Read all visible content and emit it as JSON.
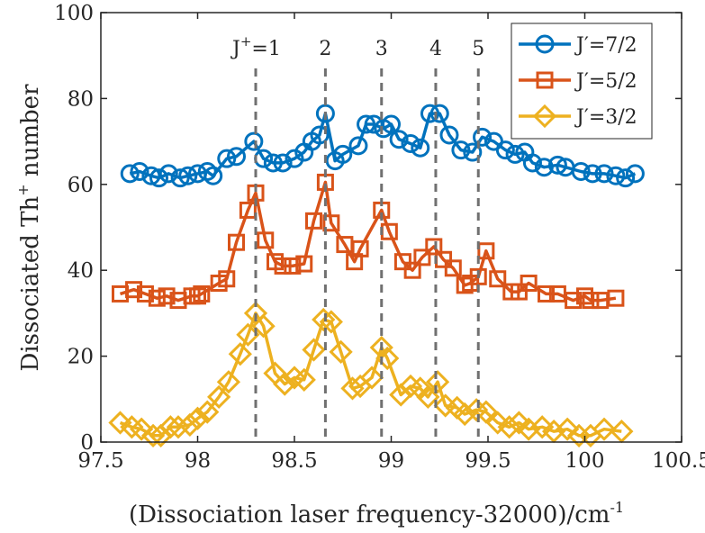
{
  "chart_data": {
    "type": "line",
    "xlabel": "(Dissociation laser frequency-32000)/cm",
    "xlabel_sup": "-1",
    "ylabel": "Dissociated Th",
    "ylabel_sup": "+",
    "ylabel_suffix": " number",
    "xlim": [
      97.5,
      100.5
    ],
    "ylim": [
      0,
      100
    ],
    "xticks": [
      97.5,
      98,
      98.5,
      99,
      99.5,
      100,
      100.5
    ],
    "xtick_labels": [
      "97.5",
      "98",
      "98.5",
      "99",
      "99.5",
      "100",
      "100.5"
    ],
    "yticks": [
      0,
      20,
      40,
      60,
      80,
      100
    ],
    "ytick_labels": [
      "0",
      "20",
      "40",
      "60",
      "80",
      "100"
    ],
    "grid": false,
    "legend_position": "top-right",
    "annotations": {
      "prefix": "J",
      "prefix_sup": "+",
      "lines_x": [
        98.3,
        98.66,
        98.95,
        99.23,
        99.45
      ],
      "labels": [
        "=1",
        "2",
        "3",
        "4",
        "5"
      ]
    },
    "series": [
      {
        "name": "J′=7/2",
        "color": "#0072BD",
        "marker": "circle",
        "x": [
          97.65,
          97.7,
          97.76,
          97.8,
          97.85,
          97.91,
          97.95,
          98.0,
          98.05,
          98.08,
          98.15,
          98.2,
          98.29,
          98.34,
          98.39,
          98.44,
          98.5,
          98.55,
          98.59,
          98.63,
          98.66,
          98.71,
          98.75,
          98.83,
          98.87,
          98.91,
          98.96,
          99.0,
          99.04,
          99.1,
          99.15,
          99.2,
          99.25,
          99.3,
          99.36,
          99.42,
          99.47,
          99.53,
          99.59,
          99.64,
          99.69,
          99.73,
          99.79,
          99.86,
          99.9,
          99.98,
          100.04,
          100.1,
          100.16,
          100.21,
          100.26
        ],
        "y": [
          62.5,
          63.0,
          62.0,
          61.5,
          62.5,
          61.5,
          62.0,
          62.5,
          63.0,
          62.0,
          66.0,
          66.5,
          70.0,
          66.0,
          65.0,
          65.0,
          66.0,
          67.5,
          70.0,
          71.5,
          76.5,
          65.5,
          67.0,
          69.0,
          74.0,
          74.0,
          73.0,
          74.0,
          70.5,
          69.5,
          68.5,
          76.5,
          76.5,
          71.5,
          68.0,
          67.5,
          71.0,
          70.0,
          68.0,
          67.0,
          67.5,
          65.0,
          64.0,
          64.5,
          64.0,
          63.0,
          62.5,
          62.5,
          62.0,
          61.5,
          62.5
        ]
      },
      {
        "name": "J′=5/2",
        "color": "#D95319",
        "marker": "square",
        "x": [
          97.6,
          97.67,
          97.73,
          97.79,
          97.84,
          97.9,
          97.97,
          98.0,
          98.02,
          98.11,
          98.15,
          98.2,
          98.26,
          98.3,
          98.35,
          98.4,
          98.44,
          98.49,
          98.55,
          98.6,
          98.66,
          98.69,
          98.76,
          98.81,
          98.84,
          98.95,
          98.99,
          99.06,
          99.11,
          99.16,
          99.22,
          99.27,
          99.32,
          99.38,
          99.41,
          99.45,
          99.49,
          99.55,
          99.62,
          99.66,
          99.71,
          99.8,
          99.86,
          99.94,
          100.0,
          100.03,
          100.08,
          100.16
        ],
        "y": [
          34.5,
          35.5,
          34.5,
          33.5,
          34.0,
          33.0,
          34.0,
          34.0,
          34.5,
          37.0,
          38.0,
          46.5,
          54.0,
          58.0,
          47.0,
          42.0,
          41.0,
          41.0,
          41.5,
          51.5,
          60.5,
          51.0,
          46.0,
          42.0,
          45.0,
          54.0,
          49.0,
          42.0,
          40.0,
          43.0,
          45.5,
          42.5,
          40.5,
          36.5,
          37.0,
          38.5,
          44.5,
          38.0,
          35.0,
          35.0,
          37.0,
          34.5,
          34.5,
          33.0,
          34.0,
          33.0,
          33.0,
          33.5
        ]
      },
      {
        "name": "J′=3/2",
        "color": "#EDB120",
        "marker": "diamond",
        "x": [
          97.6,
          97.66,
          97.71,
          97.77,
          97.81,
          97.86,
          97.9,
          97.96,
          98.0,
          98.05,
          98.11,
          98.16,
          98.22,
          98.26,
          98.3,
          98.34,
          98.4,
          98.45,
          98.5,
          98.55,
          98.6,
          98.65,
          98.69,
          98.74,
          98.8,
          98.84,
          98.9,
          98.95,
          98.98,
          99.05,
          99.1,
          99.15,
          99.19,
          99.24,
          99.28,
          99.34,
          99.38,
          99.44,
          99.49,
          99.55,
          99.61,
          99.66,
          99.71,
          99.78,
          99.84,
          99.91,
          99.97,
          100.03,
          100.1,
          100.19
        ],
        "y": [
          4.5,
          3.5,
          3.0,
          1.5,
          1.5,
          3.5,
          3.5,
          4.0,
          5.5,
          7.0,
          10.5,
          14.0,
          20.5,
          25.0,
          30.0,
          27.0,
          16.0,
          13.5,
          15.0,
          14.5,
          21.5,
          28.5,
          28.0,
          21.0,
          12.5,
          13.0,
          15.0,
          22.0,
          19.5,
          11.0,
          13.0,
          12.5,
          10.5,
          14.0,
          8.5,
          8.0,
          6.5,
          7.5,
          7.0,
          4.5,
          3.5,
          4.5,
          3.0,
          3.5,
          2.5,
          3.0,
          1.5,
          1.5,
          3.0,
          2.5
        ]
      }
    ]
  }
}
